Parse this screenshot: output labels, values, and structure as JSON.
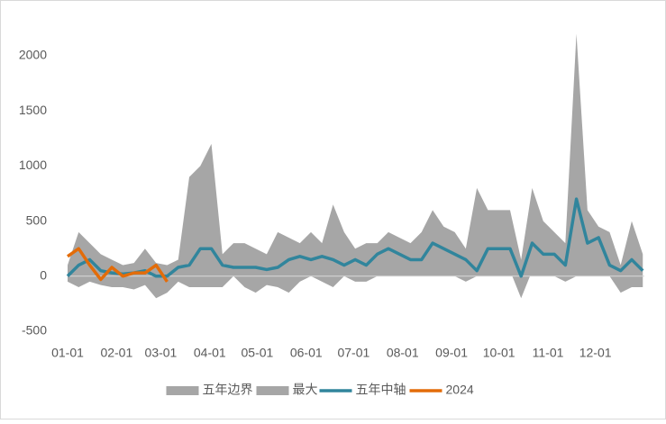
{
  "chart_data": {
    "type": "line",
    "x": [
      0,
      7,
      14,
      21,
      28,
      35,
      42,
      49,
      56,
      63,
      70,
      77,
      84,
      91,
      98,
      105,
      112,
      119,
      126,
      133,
      140,
      147,
      154,
      161,
      168,
      175,
      182,
      189,
      196,
      203,
      210,
      217,
      224,
      231,
      238,
      245,
      252,
      259,
      266,
      273,
      280,
      287,
      294,
      301,
      308,
      315,
      322,
      329,
      336,
      343,
      350,
      357,
      364
    ],
    "xlim": [
      0,
      365
    ],
    "xticks": [
      {
        "value": 0,
        "label": "01-01"
      },
      {
        "value": 31,
        "label": "02-01"
      },
      {
        "value": 59,
        "label": "03-01"
      },
      {
        "value": 90,
        "label": "04-01"
      },
      {
        "value": 120,
        "label": "05-01"
      },
      {
        "value": 151,
        "label": "06-01"
      },
      {
        "value": 181,
        "label": "07-01"
      },
      {
        "value": 212,
        "label": "08-01"
      },
      {
        "value": 243,
        "label": "09-01"
      },
      {
        "value": 273,
        "label": "10-01"
      },
      {
        "value": 304,
        "label": "11-01"
      },
      {
        "value": 334,
        "label": "12-01"
      }
    ],
    "ylim": [
      -500,
      2000
    ],
    "yticks": [
      -500,
      0,
      500,
      1000,
      1500,
      2000
    ],
    "legend": "bottom",
    "series": [
      {
        "name": "五年边界",
        "type": "area",
        "color": "#a6a6a6",
        "values": [
          -50,
          -100,
          -50,
          -80,
          -100,
          -100,
          -120,
          -80,
          -200,
          -150,
          -50,
          -100,
          -100,
          -100,
          -100,
          0,
          -100,
          -150,
          -80,
          -100,
          -150,
          -50,
          0,
          -50,
          -100,
          0,
          -50,
          -50,
          0,
          50,
          50,
          0,
          0,
          50,
          50,
          0,
          -50,
          0,
          0,
          50,
          50,
          -200,
          50,
          50,
          0,
          -50,
          0,
          50,
          0,
          0,
          -150,
          -100,
          -100
        ]
      },
      {
        "name": "最大",
        "type": "area",
        "color": "#a6a6a6",
        "values": [
          100,
          400,
          300,
          200,
          150,
          100,
          120,
          250,
          120,
          100,
          150,
          900,
          1000,
          1200,
          200,
          300,
          300,
          250,
          200,
          400,
          350,
          300,
          400,
          300,
          650,
          400,
          250,
          300,
          300,
          400,
          350,
          300,
          400,
          600,
          450,
          400,
          250,
          800,
          600,
          600,
          600,
          150,
          800,
          500,
          400,
          300,
          2200,
          600,
          450,
          400,
          100,
          500,
          200
        ]
      },
      {
        "name": "五年中轴",
        "type": "line",
        "color": "#31859c",
        "values": [
          0,
          100,
          150,
          50,
          30,
          20,
          30,
          50,
          0,
          0,
          80,
          100,
          250,
          250,
          100,
          80,
          80,
          80,
          60,
          80,
          150,
          180,
          150,
          180,
          150,
          100,
          150,
          100,
          200,
          250,
          200,
          150,
          150,
          300,
          250,
          200,
          150,
          50,
          250,
          250,
          250,
          0,
          300,
          200,
          200,
          100,
          700,
          300,
          350,
          100,
          50,
          150,
          50
        ]
      },
      {
        "name": "2024",
        "type": "line",
        "color": "#e36c09",
        "values": [
          180,
          250,
          100,
          -30,
          80,
          0,
          30,
          30,
          100,
          -50,
          null,
          null,
          null,
          null,
          null,
          null,
          null,
          null,
          null,
          null,
          null,
          null,
          null,
          null,
          null,
          null,
          null,
          null,
          null,
          null,
          null,
          null,
          null,
          null,
          null,
          null,
          null,
          null,
          null,
          null,
          null,
          null,
          null,
          null,
          null,
          null,
          null,
          null,
          null,
          null,
          null,
          null,
          null
        ]
      }
    ]
  }
}
